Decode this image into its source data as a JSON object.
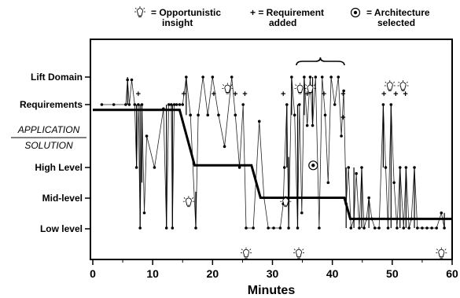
{
  "chart_data": {
    "type": "line",
    "title": "",
    "xlabel": "Minutes",
    "ylabel": "",
    "xlim": [
      0,
      60
    ],
    "x_ticks": [
      "0",
      "10",
      "20",
      "30",
      "40",
      "50",
      "60"
    ],
    "y_levels": [
      {
        "key": "lift",
        "label": "Lift Domain",
        "style": "bold"
      },
      {
        "key": "req",
        "label": "Requirements",
        "style": "bold"
      },
      {
        "key": "app",
        "label": "APPLICATION",
        "style": "italic"
      },
      {
        "key": "sol",
        "label": "SOLUTION",
        "style": "italic"
      },
      {
        "key": "high",
        "label": "High Level",
        "style": "bold"
      },
      {
        "key": "mid",
        "label": "Mid-level",
        "style": "bold"
      },
      {
        "key": "low",
        "label": "Low level",
        "style": "bold"
      }
    ],
    "legend": [
      {
        "symbol": "bulb",
        "text_line1": "= Opportunistic",
        "text_line2": "insight"
      },
      {
        "symbol": "plus",
        "text_line1": "+ = Requirement",
        "text_line2": "added"
      },
      {
        "symbol": "arch",
        "text_line1": "= Architecture",
        "text_line2": "selected"
      }
    ],
    "trend_step": [
      [
        0,
        4.75
      ],
      [
        14.5,
        4.75
      ],
      [
        17,
        2.1
      ],
      [
        26.5,
        2.1
      ],
      [
        28,
        1.0
      ],
      [
        42,
        1.0
      ],
      [
        43,
        0.3
      ],
      [
        60,
        0.3
      ]
    ],
    "trace": [
      [
        1.5,
        5.0
      ],
      [
        3.5,
        5.0
      ],
      [
        5.5,
        5.0
      ],
      [
        5.8,
        5.9
      ],
      [
        6.1,
        5.0
      ],
      [
        6.5,
        5.9
      ],
      [
        7,
        5.0
      ],
      [
        7.3,
        2.0
      ],
      [
        7.6,
        5.0
      ],
      [
        7.9,
        0
      ],
      [
        8.2,
        5.0
      ],
      [
        8.6,
        0.5
      ],
      [
        9,
        3.5
      ],
      [
        10.3,
        2.0
      ],
      [
        11.8,
        4.8
      ],
      [
        12.3,
        0
      ],
      [
        12.7,
        5.0
      ],
      [
        13.1,
        5.0
      ],
      [
        13.3,
        0
      ],
      [
        13.6,
        5.0
      ],
      [
        14,
        5.0
      ],
      [
        14.5,
        5.0
      ],
      [
        15,
        5.0
      ],
      [
        15.6,
        6.0
      ],
      [
        16.3,
        4.5
      ],
      [
        17.2,
        0
      ],
      [
        17.6,
        4.5
      ],
      [
        18.4,
        6.0
      ],
      [
        19.2,
        4.5
      ],
      [
        20,
        6.0
      ],
      [
        21,
        4.5
      ],
      [
        22,
        3.0
      ],
      [
        23.2,
        6.0
      ],
      [
        23.8,
        4.5
      ],
      [
        24.5,
        2.0
      ],
      [
        25.1,
        5.0
      ],
      [
        25.6,
        0
      ],
      [
        26.8,
        0
      ],
      [
        27.8,
        4.2
      ],
      [
        28.6,
        1.0
      ],
      [
        29.3,
        0
      ],
      [
        30.2,
        0
      ],
      [
        31.3,
        0
      ],
      [
        31.8,
        0.8
      ],
      [
        32,
        2.0
      ],
      [
        32.4,
        5.0
      ],
      [
        32.7,
        0
      ],
      [
        33.2,
        6.0
      ],
      [
        33.7,
        4.5
      ],
      [
        34.2,
        0
      ],
      [
        34.5,
        5.0
      ],
      [
        34.9,
        0.5
      ],
      [
        35.3,
        6.0
      ],
      [
        35.8,
        4.0
      ],
      [
        36.3,
        6.0
      ],
      [
        36.7,
        4.0
      ],
      [
        37.2,
        6.0
      ],
      [
        37.8,
        0
      ],
      [
        38.3,
        6.0
      ],
      [
        38.8,
        4.5
      ],
      [
        39.3,
        1.5
      ],
      [
        39.8,
        6.0
      ],
      [
        40.4,
        5.0
      ],
      [
        41,
        6.0
      ],
      [
        41.5,
        3.5
      ],
      [
        41.9,
        5.5
      ],
      [
        42.3,
        0.8
      ],
      [
        42.7,
        2.0
      ],
      [
        43.1,
        0
      ],
      [
        43.6,
        0.3
      ],
      [
        44,
        1.8
      ],
      [
        44.5,
        0
      ],
      [
        44.9,
        2.0
      ],
      [
        45.3,
        0
      ],
      [
        45.7,
        0.3
      ],
      [
        46.1,
        1.0
      ],
      [
        46.6,
        0.3
      ],
      [
        47.1,
        0
      ],
      [
        47.8,
        0
      ],
      [
        48.5,
        5.0
      ],
      [
        48.9,
        2.0
      ],
      [
        49.3,
        0
      ],
      [
        49.8,
        5.0
      ],
      [
        50.3,
        1.5
      ],
      [
        50.8,
        0
      ],
      [
        51.3,
        2.0
      ],
      [
        51.9,
        0
      ],
      [
        52.3,
        2.0
      ],
      [
        52.8,
        0
      ],
      [
        53.2,
        0.3
      ],
      [
        53.7,
        2.0
      ],
      [
        54.2,
        0
      ],
      [
        55,
        0
      ],
      [
        55.8,
        0
      ],
      [
        56.6,
        0
      ],
      [
        57.4,
        0
      ],
      [
        58.2,
        0.5
      ],
      [
        58.7,
        0
      ]
    ],
    "vbars": [
      [
        5.8,
        5.0,
        6.0
      ],
      [
        7.3,
        2.0,
        5.0
      ],
      [
        7.9,
        0,
        5.0
      ],
      [
        8.2,
        1.5,
        5.0
      ],
      [
        12.3,
        0,
        5.0
      ],
      [
        13.3,
        0,
        5.0
      ],
      [
        15.6,
        4.5,
        6.0
      ],
      [
        17.2,
        0,
        1.2
      ],
      [
        32.7,
        0,
        2.5
      ],
      [
        32.4,
        2.0,
        5.0
      ],
      [
        33.2,
        4.5,
        6.0
      ],
      [
        34.2,
        0,
        5.0
      ],
      [
        35.3,
        4.5,
        6.0
      ],
      [
        36.7,
        4.0,
        6.0
      ],
      [
        42.3,
        0,
        2.0
      ],
      [
        43.6,
        0,
        2.0
      ],
      [
        44.9,
        0,
        2.0
      ],
      [
        46.1,
        0,
        1.0
      ],
      [
        48.5,
        2.0,
        5.0
      ],
      [
        49.8,
        0,
        5.0
      ],
      [
        51.3,
        0,
        2.0
      ],
      [
        52.3,
        0,
        2.0
      ],
      [
        53.7,
        0,
        2.0
      ],
      [
        58.7,
        0,
        0.5
      ]
    ],
    "insights": [
      [
        16,
        0.8
      ],
      [
        22.5,
        5.5
      ],
      [
        25.6,
        -0.9
      ],
      [
        32.2,
        0.8
      ],
      [
        34.6,
        5.5
      ],
      [
        36.3,
        5.5
      ],
      [
        34.4,
        -0.9
      ],
      [
        49.6,
        5.6
      ],
      [
        51.8,
        5.6
      ],
      [
        58.2,
        -0.9
      ]
    ],
    "requirements": [
      [
        7.6,
        5.4
      ],
      [
        15.2,
        5.4
      ],
      [
        20.2,
        5.4
      ],
      [
        23.8,
        5.4
      ],
      [
        25.4,
        5.4
      ],
      [
        31.8,
        5.4
      ],
      [
        35.8,
        5.4
      ],
      [
        38.6,
        5.4
      ],
      [
        41.8,
        5.4
      ],
      [
        41.8,
        4.4
      ],
      [
        48.6,
        5.4
      ],
      [
        50.6,
        5.4
      ],
      [
        52.2,
        5.4
      ]
    ],
    "architecture": [
      [
        36.8,
        2.1
      ]
    ],
    "annotation": {
      "type": "brace",
      "x_range": [
        34,
        42
      ],
      "y": 7.2
    }
  }
}
